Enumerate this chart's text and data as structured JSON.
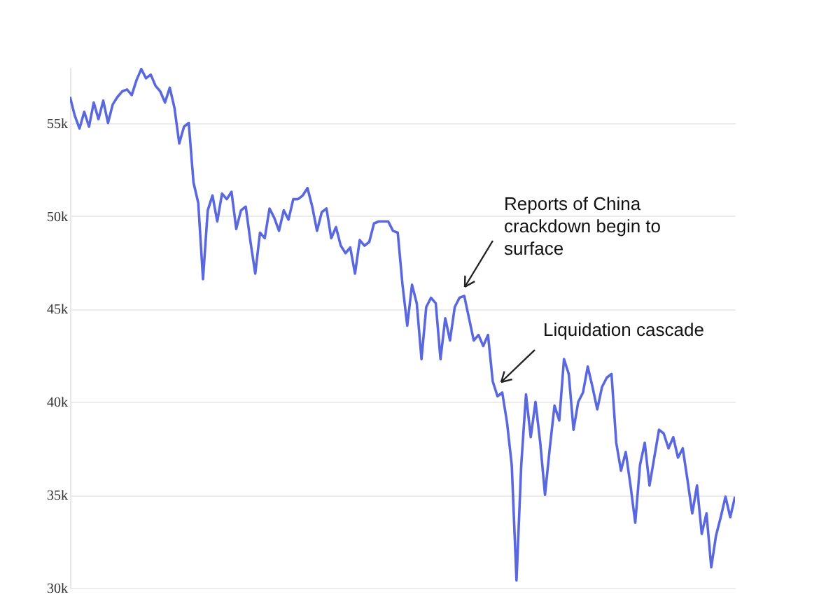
{
  "chart_data": {
    "type": "line",
    "categories": [
      null,
      null,
      null,
      null,
      null,
      null,
      null,
      null,
      null,
      null,
      null,
      null,
      null,
      null,
      null,
      null,
      null,
      null,
      null,
      null,
      null,
      null,
      null,
      null,
      null,
      null,
      null,
      null,
      null,
      null,
      null,
      null,
      null,
      null,
      null,
      null,
      null,
      null,
      null,
      null,
      null,
      null,
      null,
      null,
      null,
      null,
      null,
      null,
      null,
      null,
      null,
      null,
      null,
      null,
      null,
      null,
      null,
      null,
      null,
      null,
      null,
      null,
      null,
      null,
      null,
      null,
      null,
      null,
      null,
      null,
      null,
      null,
      null,
      null,
      null,
      null,
      null,
      null,
      null,
      null,
      null,
      null,
      null,
      null,
      null,
      null,
      null,
      null,
      null,
      null,
      null,
      null,
      null,
      null,
      null,
      null,
      null,
      null,
      null,
      null,
      null,
      null,
      null,
      null,
      null,
      null,
      null,
      null,
      null,
      null,
      null,
      null,
      null,
      null,
      null,
      null,
      null,
      null,
      null,
      null,
      null,
      null,
      null,
      null,
      null,
      null,
      null,
      null,
      null,
      null,
      null,
      null,
      null,
      null,
      null,
      null,
      null,
      null,
      null,
      null,
      null
    ],
    "series": [
      {
        "color": "#5a68e0",
        "values": [
          56400,
          55400,
          54700,
          55600,
          54800,
          56100,
          55200,
          56200,
          55000,
          56000,
          56400,
          56700,
          56800,
          56500,
          57300,
          57900,
          57400,
          57600,
          57000,
          56700,
          56100,
          56900,
          55800,
          53900,
          54800,
          55000,
          51800,
          50700,
          46600,
          50300,
          51100,
          49700,
          51200,
          50900,
          51300,
          49300,
          50300,
          50500,
          48600,
          46900,
          49100,
          48800,
          50400,
          49900,
          49200,
          50300,
          49800,
          50900,
          50900,
          51100,
          51500,
          50500,
          49200,
          50200,
          50400,
          48800,
          49400,
          48400,
          48000,
          48300,
          46900,
          48700,
          48400,
          48600,
          49600,
          49700,
          49700,
          49700,
          49200,
          49100,
          46300,
          44100,
          46300,
          45300,
          42300,
          45100,
          45600,
          45300,
          42300,
          44500,
          43300,
          45100,
          45600,
          45700,
          44500,
          43300,
          43600,
          43000,
          43600,
          41100,
          40300,
          40500,
          38900,
          36600,
          30400,
          36600,
          40400,
          38100,
          40000,
          37800,
          35000,
          37500,
          39800,
          39000,
          42300,
          41500,
          38500,
          40000,
          40500,
          41900,
          40800,
          39600,
          40800,
          41300,
          41500,
          37800,
          36300,
          37300,
          35500,
          33500,
          36600,
          37800,
          35500,
          37000,
          38500,
          38300,
          37500,
          38100,
          37000,
          37500,
          35800,
          34000,
          35500,
          32900,
          34000,
          31100,
          32800,
          33800,
          34900,
          33800,
          34900
        ]
      }
    ],
    "ylim": [
      30000,
      58000
    ],
    "yticks": [
      {
        "value": 30000,
        "label": "30k"
      },
      {
        "value": 35000,
        "label": "35k"
      },
      {
        "value": 40000,
        "label": "40k"
      },
      {
        "value": 45000,
        "label": "45k"
      },
      {
        "value": 50000,
        "label": "50k"
      },
      {
        "value": 55000,
        "label": "55k"
      }
    ],
    "grid": "y",
    "tick_labels": "y",
    "annotations": [
      "Reports of China crackdown begin to surface",
      "Liquidation cascade"
    ]
  }
}
